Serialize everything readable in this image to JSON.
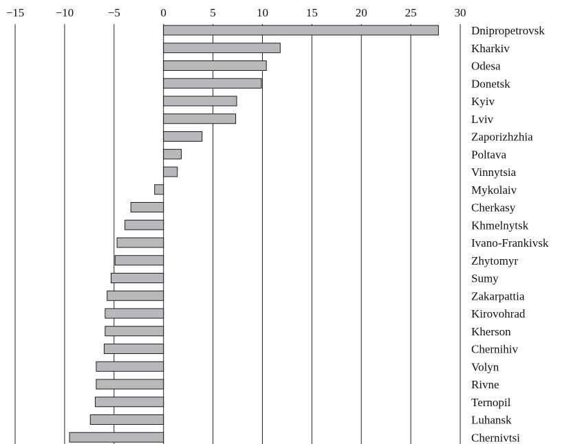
{
  "chart_data": {
    "type": "bar",
    "orientation": "horizontal",
    "title": "",
    "xlabel": "",
    "ylabel": "",
    "xlim": [
      -15,
      30
    ],
    "xticks": [
      -15,
      -10,
      -5,
      0,
      5,
      10,
      15,
      20,
      25,
      30
    ],
    "xtick_labels": [
      "−15",
      "−10",
      "−5",
      "0",
      "5",
      "10",
      "15",
      "20",
      "25",
      "30"
    ],
    "grid": "vertical lines at each tick",
    "bar_color": "#b9b9bd",
    "categories": [
      "Dnipropetrovsk",
      "Kharkiv",
      "Odesa",
      "Donetsk",
      "Kyiv",
      "Lviv",
      "Zaporizhzhia",
      "Poltava",
      "Vinnytsia",
      "Mykolaiv",
      "Cherkasy",
      "Khmelnytsk",
      "Ivano-Frankivsk",
      "Zhytomyr",
      "Sumy",
      "Zakarpattia",
      "Kirovohrad",
      "Kherson",
      "Chernihiv",
      "Volyn",
      "Rivne",
      "Ternopil",
      "Luhansk",
      "Chernivtsi"
    ],
    "values": [
      27.8,
      11.8,
      10.4,
      9.9,
      7.4,
      7.3,
      3.9,
      1.8,
      1.4,
      -0.9,
      -3.3,
      -3.9,
      -4.7,
      -4.9,
      -5.3,
      -5.7,
      -5.9,
      -5.9,
      -6.0,
      -6.8,
      -6.8,
      -6.9,
      -7.4,
      -9.5
    ]
  }
}
